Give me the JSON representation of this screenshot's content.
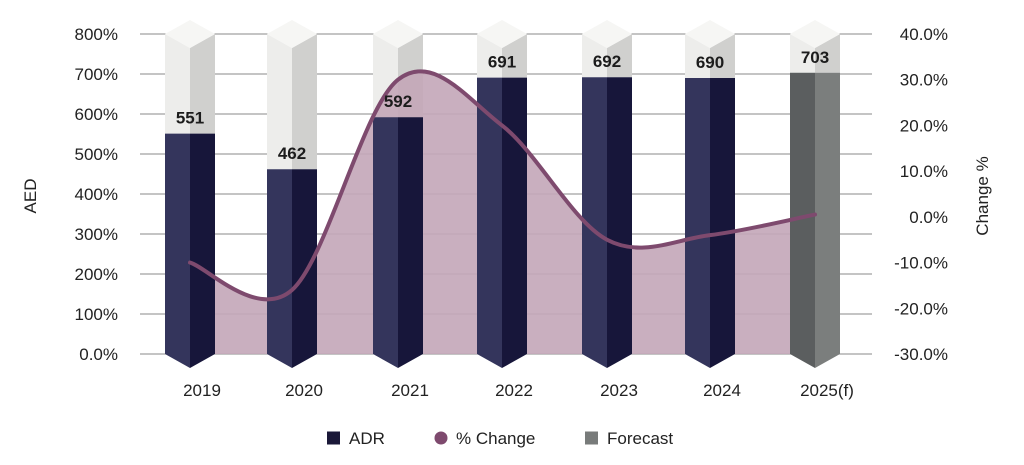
{
  "chart_data": {
    "type": "bar",
    "categories": [
      "2019",
      "2020",
      "2021",
      "2022",
      "2023",
      "2024",
      "2025(f)"
    ],
    "series": [
      {
        "name": "ADR",
        "type": "bar",
        "values": [
          551,
          462,
          592,
          691,
          692,
          690,
          703
        ]
      },
      {
        "name": "% Change",
        "type": "line",
        "axis": "right",
        "values": [
          -10.0,
          -16.0,
          30.0,
          20.0,
          -5.0,
          -4.0,
          0.5
        ]
      }
    ],
    "forecast_category": "2025(f)",
    "data_labels": [
      "551",
      "462",
      "592",
      "691",
      "692",
      "690",
      "703"
    ],
    "y_left": {
      "label": "AED",
      "ticks": [
        "0.0%",
        "100%",
        "200%",
        "300%",
        "400%",
        "500%",
        "600%",
        "700%",
        "800%"
      ],
      "ylim": [
        0,
        800
      ]
    },
    "y_right": {
      "label": "Change %",
      "ticks": [
        "-30.0%",
        "-20.0%",
        "-10.0%",
        "0.0%",
        "10.0%",
        "20.0%",
        "30.0%",
        "40.0%"
      ],
      "ylim": [
        -30,
        40
      ]
    },
    "legend": {
      "placement": "bottom-center",
      "items": [
        {
          "label": "ADR",
          "marker": "square",
          "color": "#1a1838"
        },
        {
          "label": "% Change",
          "marker": "circle",
          "color": "#7e4a6e"
        },
        {
          "label": "Forecast",
          "marker": "square",
          "color": "#787b7a"
        }
      ]
    },
    "grid": true,
    "colors": {
      "bar_front": "#34355c",
      "bar_side": "#17163a",
      "forecast_front": "#5b5e5f",
      "forecast_side": "#7b7e7d",
      "cap_light": "#ededeb",
      "cap_shade": "#d0d0ce",
      "line": "#7e4a6e",
      "area_fill": "#c3a6b8",
      "grid": "#8a8a8a"
    }
  }
}
